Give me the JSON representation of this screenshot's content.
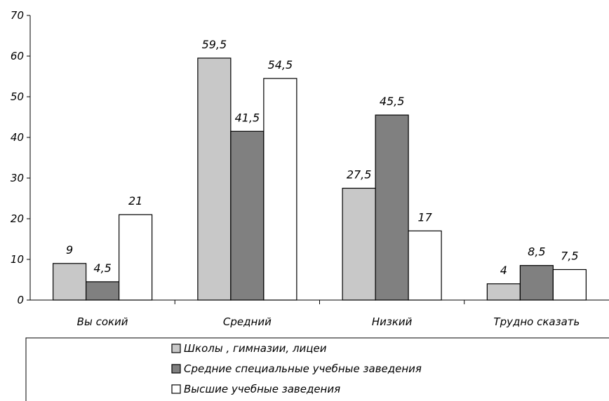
{
  "chart_data": {
    "type": "bar",
    "categories": [
      "Вы сокий",
      "Средний",
      "Низкий",
      "Трудно сказать"
    ],
    "series": [
      {
        "name": "Школы , гимназии, лицеи",
        "values": [
          9,
          59.5,
          27.5,
          4
        ],
        "value_labels": [
          "9",
          "59,5",
          "27,5",
          "4"
        ],
        "color": "#c8c8c8"
      },
      {
        "name": "Средние специальные учебные заведения",
        "values": [
          4.5,
          41.5,
          45.5,
          8.5
        ],
        "value_labels": [
          "4,5",
          "41,5",
          "45,5",
          "8,5"
        ],
        "color": "#808080"
      },
      {
        "name": "Высшие учебные заведения",
        "values": [
          21,
          54.5,
          17,
          7.5
        ],
        "value_labels": [
          "21",
          "54,5",
          "17",
          "7,5"
        ],
        "color": "#ffffff"
      }
    ],
    "ylim": [
      0,
      70
    ],
    "yticks": [
      0,
      10,
      20,
      30,
      40,
      50,
      60,
      70
    ],
    "grid": false,
    "legend_position": "bottom",
    "title": "",
    "xlabel": "",
    "ylabel": ""
  }
}
